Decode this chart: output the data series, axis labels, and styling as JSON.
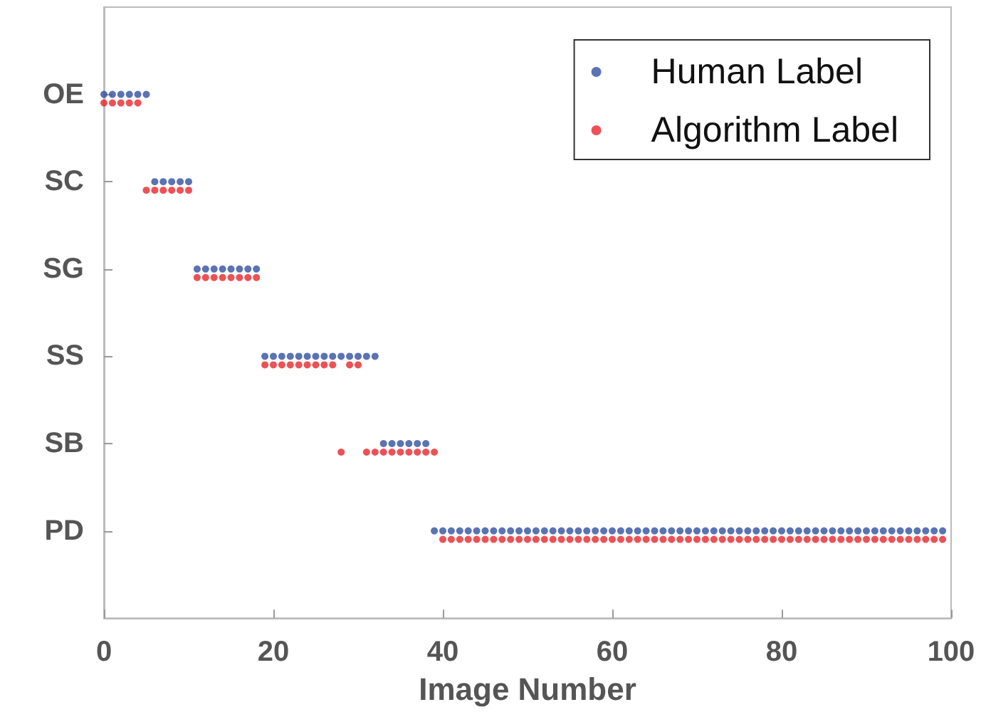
{
  "chart_data": {
    "type": "scatter",
    "orientation": "horizontal",
    "xlabel": "Image Number",
    "xlim": [
      0,
      100
    ],
    "xticks": [
      0,
      20,
      40,
      60,
      80,
      100
    ],
    "categories": [
      "OE",
      "SC",
      "SG",
      "SS",
      "SB",
      "PD"
    ],
    "grid": false,
    "legend": "top right",
    "marker": "circle",
    "series": [
      {
        "name": "Human Label",
        "color": "#3050a0",
        "x": [
          "OE",
          "OE",
          "OE",
          "OE",
          "OE",
          "OE",
          "SC",
          "SC",
          "SC",
          "SC",
          "SC",
          "SG",
          "SG",
          "SG",
          "SG",
          "SG",
          "SG",
          "SG",
          "SG",
          "SS",
          "SS",
          "SS",
          "SS",
          "SS",
          "SS",
          "SS",
          "SS",
          "SS",
          "SS",
          "SS",
          "SS",
          "SS",
          "SS",
          "SB",
          "SB",
          "SB",
          "SB",
          "SB",
          "SB",
          "PD",
          "PD",
          "PD",
          "PD",
          "PD",
          "PD",
          "PD",
          "PD",
          "PD",
          "PD",
          "PD",
          "PD",
          "PD",
          "PD",
          "PD",
          "PD",
          "PD",
          "PD",
          "PD",
          "PD",
          "PD",
          "PD",
          "PD",
          "PD",
          "PD",
          "PD",
          "PD",
          "PD",
          "PD",
          "PD",
          "PD",
          "PD",
          "PD",
          "PD",
          "PD",
          "PD",
          "PD",
          "PD",
          "PD",
          "PD",
          "PD",
          "PD",
          "PD",
          "PD",
          "PD",
          "PD",
          "PD",
          "PD",
          "PD",
          "PD",
          "PD",
          "PD",
          "PD",
          "PD",
          "PD",
          "PD",
          "PD",
          "PD",
          "PD",
          "PD",
          "PD"
        ],
        "values": [
          0,
          1,
          2,
          3,
          4,
          5,
          6,
          7,
          8,
          9,
          10,
          11,
          12,
          13,
          14,
          15,
          16,
          17,
          18,
          19,
          20,
          21,
          22,
          23,
          24,
          25,
          26,
          27,
          28,
          29,
          30,
          31,
          32,
          33,
          34,
          35,
          36,
          37,
          38,
          39,
          40,
          41,
          42,
          43,
          44,
          45,
          46,
          47,
          48,
          49,
          50,
          51,
          52,
          53,
          54,
          55,
          56,
          57,
          58,
          59,
          60,
          61,
          62,
          63,
          64,
          65,
          66,
          67,
          68,
          69,
          70,
          71,
          72,
          73,
          74,
          75,
          76,
          77,
          78,
          79,
          80,
          81,
          82,
          83,
          84,
          85,
          86,
          87,
          88,
          89,
          90,
          91,
          92,
          93,
          94,
          95,
          96,
          97,
          98,
          99
        ]
      },
      {
        "name": "Algorithm Label",
        "color": "#e8262a",
        "x": [
          "OE",
          "OE",
          "OE",
          "OE",
          "OE",
          "SC",
          "SC",
          "SC",
          "SC",
          "SC",
          "SC",
          "SG",
          "SG",
          "SG",
          "SG",
          "SG",
          "SG",
          "SG",
          "SG",
          "SS",
          "SS",
          "SS",
          "SS",
          "SS",
          "SS",
          "SS",
          "SS",
          "SS",
          "SB",
          "SS",
          "SS",
          "SB",
          "SB",
          "SB",
          "SB",
          "SB",
          "SB",
          "SB",
          "SB",
          "SB",
          "PD",
          "PD",
          "PD",
          "PD",
          "PD",
          "PD",
          "PD",
          "PD",
          "PD",
          "PD",
          "PD",
          "PD",
          "PD",
          "PD",
          "PD",
          "PD",
          "PD",
          "PD",
          "PD",
          "PD",
          "PD",
          "PD",
          "PD",
          "PD",
          "PD",
          "PD",
          "PD",
          "PD",
          "PD",
          "PD",
          "PD",
          "PD",
          "PD",
          "PD",
          "PD",
          "PD",
          "PD",
          "PD",
          "PD",
          "PD",
          "PD",
          "PD",
          "PD",
          "PD",
          "PD",
          "PD",
          "PD",
          "PD",
          "PD",
          "PD",
          "PD",
          "PD",
          "PD",
          "PD",
          "PD",
          "PD",
          "PD",
          "PD",
          "PD",
          "PD"
        ],
        "values": [
          0,
          1,
          2,
          3,
          4,
          5,
          6,
          7,
          8,
          9,
          10,
          11,
          12,
          13,
          14,
          15,
          16,
          17,
          18,
          19,
          20,
          21,
          22,
          23,
          24,
          25,
          26,
          27,
          28,
          29,
          30,
          31,
          32,
          33,
          34,
          35,
          36,
          37,
          38,
          39,
          40,
          41,
          42,
          43,
          44,
          45,
          46,
          47,
          48,
          49,
          50,
          51,
          52,
          53,
          54,
          55,
          56,
          57,
          58,
          59,
          60,
          61,
          62,
          63,
          64,
          65,
          66,
          67,
          68,
          69,
          70,
          71,
          72,
          73,
          74,
          75,
          76,
          77,
          78,
          79,
          80,
          81,
          82,
          83,
          84,
          85,
          86,
          87,
          88,
          89,
          90,
          91,
          92,
          93,
          94,
          95,
          96,
          97,
          98,
          99
        ]
      }
    ]
  }
}
